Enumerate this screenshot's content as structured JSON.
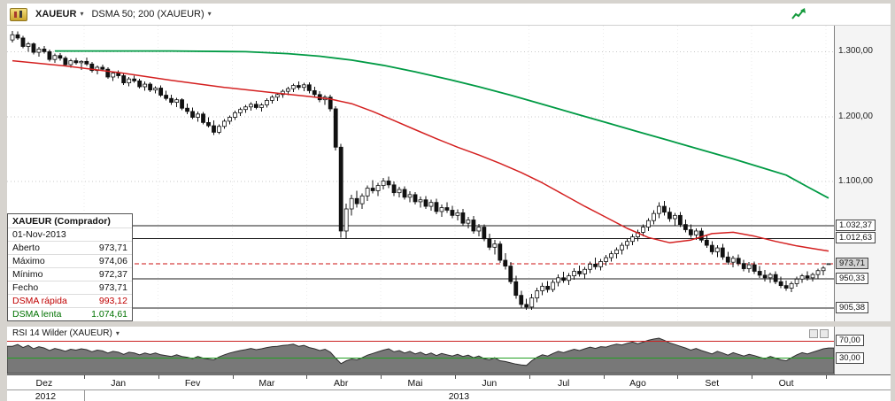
{
  "toolbar": {
    "symbol": "XAUEUR",
    "indicator": "DSMA 50; 200 (XAUEUR)"
  },
  "tooltip": {
    "title": "XAUEUR (Comprador)",
    "date": "01-Nov-2013",
    "rows": [
      {
        "label": "Aberto",
        "value": "973,71"
      },
      {
        "label": "Máximo",
        "value": "974,06"
      },
      {
        "label": "Mínimo",
        "value": "972,37"
      },
      {
        "label": "Fecho",
        "value": "973,71"
      },
      {
        "label": "DSMA rápida",
        "value": "993,12"
      },
      {
        "label": "DSMA lenta",
        "value": "1.074,61"
      }
    ]
  },
  "rsi_panel": {
    "title": "RSI 14 Wilder (XAUEUR)"
  },
  "x_axis": {
    "months": [
      "Dez",
      "Jan",
      "Fev",
      "Mar",
      "Abr",
      "Mai",
      "Jun",
      "Jul",
      "Ago",
      "Set",
      "Out"
    ],
    "years": [
      {
        "label": "2012",
        "months": 1
      },
      {
        "label": "2013",
        "months": 10
      }
    ]
  },
  "colors": {
    "dsma_fast": "#d42020",
    "dsma_slow": "#009a44",
    "rsi_upper": "#cc2222",
    "rsi_lower": "#22a022",
    "current_line": "#cc1111",
    "trend_icon": "#149a3c"
  },
  "chart_data": {
    "type": "candlestick",
    "symbol": "XAUEUR",
    "y_range": [
      885,
      1340
    ],
    "y_gridlines": [
      {
        "price": 1300,
        "label": "1.300,00"
      },
      {
        "price": 1200,
        "label": "1.200,00"
      },
      {
        "price": 1100,
        "label": "1.100,00"
      }
    ],
    "annotations": {
      "levels": [
        {
          "price": 1032.37,
          "label": "1.032,37"
        },
        {
          "price": 1012.63,
          "label": "1.012,63"
        },
        {
          "price": 950.33,
          "label": "950,33"
        },
        {
          "price": 905.38,
          "label": "905,38"
        }
      ],
      "current": {
        "price": 973.71,
        "label": "973,71"
      }
    },
    "candles": [
      [
        1318,
        1332,
        1314,
        1326
      ],
      [
        1326,
        1331,
        1318,
        1321
      ],
      [
        1321,
        1324,
        1305,
        1308
      ],
      [
        1308,
        1315,
        1300,
        1312
      ],
      [
        1312,
        1314,
        1296,
        1299
      ],
      [
        1299,
        1307,
        1292,
        1304
      ],
      [
        1304,
        1309,
        1297,
        1300
      ],
      [
        1300,
        1303,
        1285,
        1288
      ],
      [
        1288,
        1297,
        1283,
        1294
      ],
      [
        1294,
        1298,
        1286,
        1290
      ],
      [
        1290,
        1293,
        1277,
        1280
      ],
      [
        1280,
        1289,
        1275,
        1286
      ],
      [
        1286,
        1290,
        1280,
        1283
      ],
      [
        1283,
        1287,
        1272,
        1285
      ],
      [
        1285,
        1291,
        1278,
        1281
      ],
      [
        1281,
        1284,
        1268,
        1271
      ],
      [
        1271,
        1279,
        1265,
        1276
      ],
      [
        1276,
        1280,
        1270,
        1273
      ],
      [
        1273,
        1276,
        1258,
        1261
      ],
      [
        1261,
        1270,
        1255,
        1267
      ],
      [
        1267,
        1271,
        1259,
        1263
      ],
      [
        1263,
        1266,
        1249,
        1252
      ],
      [
        1252,
        1261,
        1247,
        1258
      ],
      [
        1258,
        1263,
        1252,
        1255
      ],
      [
        1255,
        1258,
        1243,
        1246
      ],
      [
        1246,
        1254,
        1240,
        1250
      ],
      [
        1250,
        1253,
        1238,
        1241
      ],
      [
        1241,
        1247,
        1236,
        1244
      ],
      [
        1244,
        1248,
        1230,
        1233
      ],
      [
        1233,
        1240,
        1225,
        1228
      ],
      [
        1228,
        1234,
        1218,
        1222
      ],
      [
        1222,
        1229,
        1215,
        1226
      ],
      [
        1226,
        1228,
        1210,
        1213
      ],
      [
        1213,
        1220,
        1204,
        1208
      ],
      [
        1208,
        1214,
        1196,
        1199
      ],
      [
        1199,
        1208,
        1192,
        1204
      ],
      [
        1204,
        1207,
        1188,
        1191
      ],
      [
        1191,
        1199,
        1183,
        1186
      ],
      [
        1186,
        1194,
        1172,
        1176
      ],
      [
        1176,
        1188,
        1173,
        1185
      ],
      [
        1185,
        1196,
        1181,
        1193
      ],
      [
        1193,
        1202,
        1188,
        1199
      ],
      [
        1199,
        1209,
        1195,
        1206
      ],
      [
        1206,
        1214,
        1201,
        1211
      ],
      [
        1211,
        1218,
        1206,
        1215
      ],
      [
        1215,
        1222,
        1209,
        1219
      ],
      [
        1219,
        1224,
        1211,
        1214
      ],
      [
        1214,
        1221,
        1208,
        1218
      ],
      [
        1218,
        1228,
        1214,
        1225
      ],
      [
        1225,
        1233,
        1220,
        1230
      ],
      [
        1230,
        1237,
        1224,
        1234
      ],
      [
        1234,
        1242,
        1229,
        1239
      ],
      [
        1239,
        1246,
        1233,
        1243
      ],
      [
        1243,
        1251,
        1238,
        1248
      ],
      [
        1248,
        1254,
        1241,
        1245
      ],
      [
        1245,
        1252,
        1239,
        1249
      ],
      [
        1249,
        1253,
        1236,
        1240
      ],
      [
        1240,
        1246,
        1230,
        1234
      ],
      [
        1234,
        1239,
        1222,
        1226
      ],
      [
        1226,
        1233,
        1218,
        1230
      ],
      [
        1230,
        1234,
        1208,
        1212
      ],
      [
        1212,
        1216,
        1148,
        1153
      ],
      [
        1153,
        1158,
        1014,
        1024
      ],
      [
        1024,
        1066,
        1012,
        1058
      ],
      [
        1058,
        1080,
        1048,
        1074
      ],
      [
        1074,
        1086,
        1060,
        1066
      ],
      [
        1066,
        1082,
        1058,
        1078
      ],
      [
        1078,
        1094,
        1070,
        1090
      ],
      [
        1090,
        1102,
        1082,
        1086
      ],
      [
        1086,
        1098,
        1078,
        1094
      ],
      [
        1094,
        1106,
        1088,
        1101
      ],
      [
        1101,
        1108,
        1090,
        1095
      ],
      [
        1095,
        1100,
        1078,
        1083
      ],
      [
        1083,
        1092,
        1076,
        1088
      ],
      [
        1088,
        1093,
        1072,
        1076
      ],
      [
        1076,
        1085,
        1068,
        1080
      ],
      [
        1080,
        1084,
        1065,
        1069
      ],
      [
        1069,
        1077,
        1060,
        1072
      ],
      [
        1072,
        1078,
        1058,
        1062
      ],
      [
        1062,
        1072,
        1055,
        1068
      ],
      [
        1068,
        1074,
        1050,
        1054
      ],
      [
        1054,
        1065,
        1046,
        1060
      ],
      [
        1060,
        1068,
        1052,
        1056
      ],
      [
        1056,
        1063,
        1044,
        1048
      ],
      [
        1048,
        1057,
        1040,
        1052
      ],
      [
        1052,
        1058,
        1032,
        1036
      ],
      [
        1036,
        1046,
        1028,
        1041
      ],
      [
        1041,
        1047,
        1020,
        1024
      ],
      [
        1024,
        1035,
        1016,
        1030
      ],
      [
        1030,
        1034,
        1008,
        1012
      ],
      [
        1012,
        1020,
        995,
        999
      ],
      [
        999,
        1010,
        988,
        1004
      ],
      [
        1004,
        1008,
        975,
        979
      ],
      [
        979,
        990,
        965,
        970
      ],
      [
        970,
        976,
        942,
        946
      ],
      [
        946,
        955,
        920,
        925
      ],
      [
        925,
        932,
        906,
        911
      ],
      [
        911,
        920,
        903,
        907
      ],
      [
        907,
        927,
        903,
        921
      ],
      [
        921,
        937,
        914,
        932
      ],
      [
        932,
        944,
        925,
        939
      ],
      [
        939,
        947,
        929,
        934
      ],
      [
        934,
        949,
        930,
        945
      ],
      [
        945,
        957,
        939,
        952
      ],
      [
        952,
        961,
        944,
        948
      ],
      [
        948,
        959,
        941,
        955
      ],
      [
        955,
        967,
        949,
        962
      ],
      [
        962,
        971,
        954,
        958
      ],
      [
        958,
        969,
        951,
        965
      ],
      [
        965,
        977,
        959,
        973
      ],
      [
        973,
        983,
        965,
        969
      ],
      [
        969,
        981,
        963,
        977
      ],
      [
        977,
        987,
        971,
        983
      ],
      [
        983,
        993,
        977,
        989
      ],
      [
        989,
        999,
        982,
        995
      ],
      [
        995,
        1006,
        988,
        1002
      ],
      [
        1002,
        1012,
        996,
        1008
      ],
      [
        1008,
        1019,
        1002,
        1015
      ],
      [
        1015,
        1026,
        1008,
        1022
      ],
      [
        1022,
        1034,
        1016,
        1030
      ],
      [
        1030,
        1044,
        1024,
        1040
      ],
      [
        1040,
        1056,
        1034,
        1051
      ],
      [
        1051,
        1068,
        1044,
        1062
      ],
      [
        1062,
        1070,
        1048,
        1053
      ],
      [
        1053,
        1060,
        1038,
        1043
      ],
      [
        1043,
        1052,
        1032,
        1048
      ],
      [
        1048,
        1053,
        1030,
        1034
      ],
      [
        1034,
        1042,
        1022,
        1026
      ],
      [
        1026,
        1034,
        1014,
        1018
      ],
      [
        1018,
        1028,
        1010,
        1024
      ],
      [
        1024,
        1029,
        1006,
        1010
      ],
      [
        1010,
        1018,
        998,
        1002
      ],
      [
        1002,
        1008,
        988,
        992
      ],
      [
        992,
        1002,
        984,
        998
      ],
      [
        998,
        1004,
        980,
        984
      ],
      [
        984,
        992,
        972,
        976
      ],
      [
        976,
        986,
        968,
        982
      ],
      [
        982,
        988,
        970,
        974
      ],
      [
        974,
        980,
        962,
        966
      ],
      [
        966,
        976,
        960,
        972
      ],
      [
        972,
        977,
        958,
        962
      ],
      [
        962,
        970,
        952,
        956
      ],
      [
        956,
        964,
        946,
        952
      ],
      [
        952,
        960,
        944,
        957
      ],
      [
        957,
        962,
        942,
        946
      ],
      [
        946,
        954,
        936,
        940
      ],
      [
        940,
        948,
        932,
        936
      ],
      [
        936,
        946,
        930,
        943
      ],
      [
        943,
        954,
        938,
        950
      ],
      [
        950,
        958,
        944,
        955
      ],
      [
        955,
        962,
        948,
        952
      ],
      [
        952,
        960,
        946,
        957
      ],
      [
        957,
        966,
        951,
        963
      ],
      [
        963,
        970,
        956,
        967
      ],
      [
        973.71,
        974.06,
        972.37,
        973.71
      ]
    ],
    "overlays": [
      {
        "name": "DSMA 50",
        "color": "#d42020",
        "width": 1.5,
        "current": 993.12,
        "points": [
          [
            0,
            1286
          ],
          [
            10,
            1278
          ],
          [
            20,
            1268
          ],
          [
            30,
            1256
          ],
          [
            40,
            1245
          ],
          [
            50,
            1236
          ],
          [
            56,
            1231
          ],
          [
            60,
            1227
          ],
          [
            64,
            1220
          ],
          [
            68,
            1208
          ],
          [
            72,
            1194
          ],
          [
            76,
            1180
          ],
          [
            80,
            1166
          ],
          [
            84,
            1153
          ],
          [
            88,
            1141
          ],
          [
            92,
            1128
          ],
          [
            96,
            1114
          ],
          [
            100,
            1098
          ],
          [
            104,
            1080
          ],
          [
            108,
            1062
          ],
          [
            112,
            1045
          ],
          [
            116,
            1028
          ],
          [
            120,
            1014
          ],
          [
            124,
            1006
          ],
          [
            128,
            1010
          ],
          [
            132,
            1020
          ],
          [
            136,
            1022
          ],
          [
            140,
            1016
          ],
          [
            144,
            1008
          ],
          [
            148,
            1001
          ],
          [
            151,
            997
          ],
          [
            154,
            993.12
          ]
        ]
      },
      {
        "name": "DSMA 200",
        "color": "#009a44",
        "width": 1.8,
        "current": 1074.61,
        "points": [
          [
            8,
            1301
          ],
          [
            30,
            1301
          ],
          [
            44,
            1300
          ],
          [
            52,
            1297
          ],
          [
            58,
            1293
          ],
          [
            64,
            1287
          ],
          [
            70,
            1279
          ],
          [
            76,
            1269
          ],
          [
            82,
            1258
          ],
          [
            88,
            1246
          ],
          [
            94,
            1233
          ],
          [
            100,
            1219
          ],
          [
            106,
            1205
          ],
          [
            112,
            1191
          ],
          [
            118,
            1177
          ],
          [
            124,
            1163
          ],
          [
            130,
            1149
          ],
          [
            136,
            1135
          ],
          [
            142,
            1120
          ],
          [
            146,
            1110
          ],
          [
            150,
            1092
          ],
          [
            154,
            1074.61
          ]
        ]
      }
    ],
    "rsi": {
      "name": "RSI 14 Wilder",
      "period": 14,
      "bands": [
        {
          "value": 70,
          "label": "70,00",
          "color": "#cc2222"
        },
        {
          "value": 30,
          "label": "30,00",
          "color": "#22a022"
        }
      ],
      "values": [
        58,
        62,
        55,
        60,
        52,
        57,
        54,
        48,
        53,
        50,
        46,
        51,
        49,
        52,
        50,
        45,
        49,
        47,
        42,
        46,
        44,
        39,
        44,
        42,
        38,
        42,
        39,
        42,
        38,
        36,
        34,
        38,
        34,
        32,
        29,
        34,
        30,
        28,
        26,
        33,
        38,
        42,
        45,
        48,
        50,
        53,
        50,
        52,
        55,
        57,
        58,
        60,
        61,
        63,
        58,
        60,
        55,
        52,
        48,
        51,
        44,
        30,
        17,
        24,
        28,
        26,
        31,
        37,
        41,
        45,
        49,
        52,
        45,
        48,
        42,
        46,
        40,
        44,
        38,
        42,
        36,
        41,
        38,
        35,
        39,
        34,
        37,
        31,
        35,
        29,
        26,
        31,
        24,
        22,
        19,
        16,
        14,
        13,
        24,
        32,
        38,
        35,
        41,
        46,
        43,
        47,
        51,
        48,
        52,
        56,
        53,
        57,
        56,
        60,
        63,
        61,
        65,
        68,
        64,
        68,
        72,
        75,
        77,
        72,
        66,
        62,
        58,
        54,
        49,
        53,
        48,
        44,
        40,
        46,
        42,
        37,
        43,
        39,
        35,
        39,
        36,
        32,
        29,
        34,
        30,
        26,
        24,
        31,
        38,
        43,
        40,
        44,
        48,
        52,
        54
      ]
    }
  }
}
